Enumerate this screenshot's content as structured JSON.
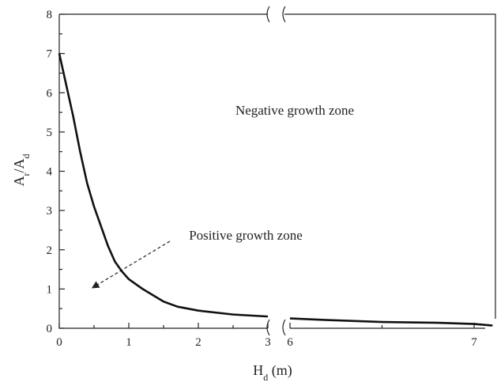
{
  "chart_data": {
    "type": "line",
    "y_label": {
      "parts": [
        "A",
        "r",
        "/A",
        "d"
      ],
      "subscript": [
        false,
        true,
        false,
        true
      ]
    },
    "x_label": {
      "parts": [
        "H",
        "d",
        " (m)"
      ],
      "subscript": [
        false,
        true,
        false
      ]
    },
    "annotations": [
      "Negative growth zone",
      "Positive growth zone"
    ],
    "ylim": [
      0,
      8
    ],
    "yticks": [
      0,
      1,
      2,
      3,
      4,
      5,
      6,
      7,
      8
    ],
    "yminor": [
      0.5,
      1.5,
      2.5,
      3.5,
      4.5,
      5.5,
      6.5,
      7.5
    ],
    "x_segments": [
      {
        "xlim": [
          0,
          3
        ],
        "xticks": [
          0,
          1,
          2,
          3
        ],
        "xminor": [
          0.5,
          1.5,
          2.5
        ]
      },
      {
        "xlim": [
          6,
          7.12
        ],
        "xticks": [
          6,
          7
        ],
        "xminor": [
          6.5
        ]
      }
    ],
    "series": [
      {
        "color": "#111111",
        "segment": 0,
        "x": [
          0,
          0.1,
          0.2,
          0.3,
          0.4,
          0.5,
          0.6,
          0.7,
          0.8,
          0.9,
          1.0,
          1.2,
          1.5,
          1.7,
          2.0,
          2.5,
          3.0
        ],
        "values": [
          7.0,
          6.2,
          5.4,
          4.5,
          3.7,
          3.1,
          2.6,
          2.1,
          1.7,
          1.45,
          1.25,
          1.0,
          0.68,
          0.55,
          0.45,
          0.35,
          0.3
        ]
      },
      {
        "color": "#111111",
        "segment": 1,
        "x": [
          6.0,
          6.2,
          6.5,
          6.8,
          7.0,
          7.1
        ],
        "values": [
          0.25,
          0.21,
          0.16,
          0.14,
          0.11,
          0.07
        ]
      }
    ]
  }
}
